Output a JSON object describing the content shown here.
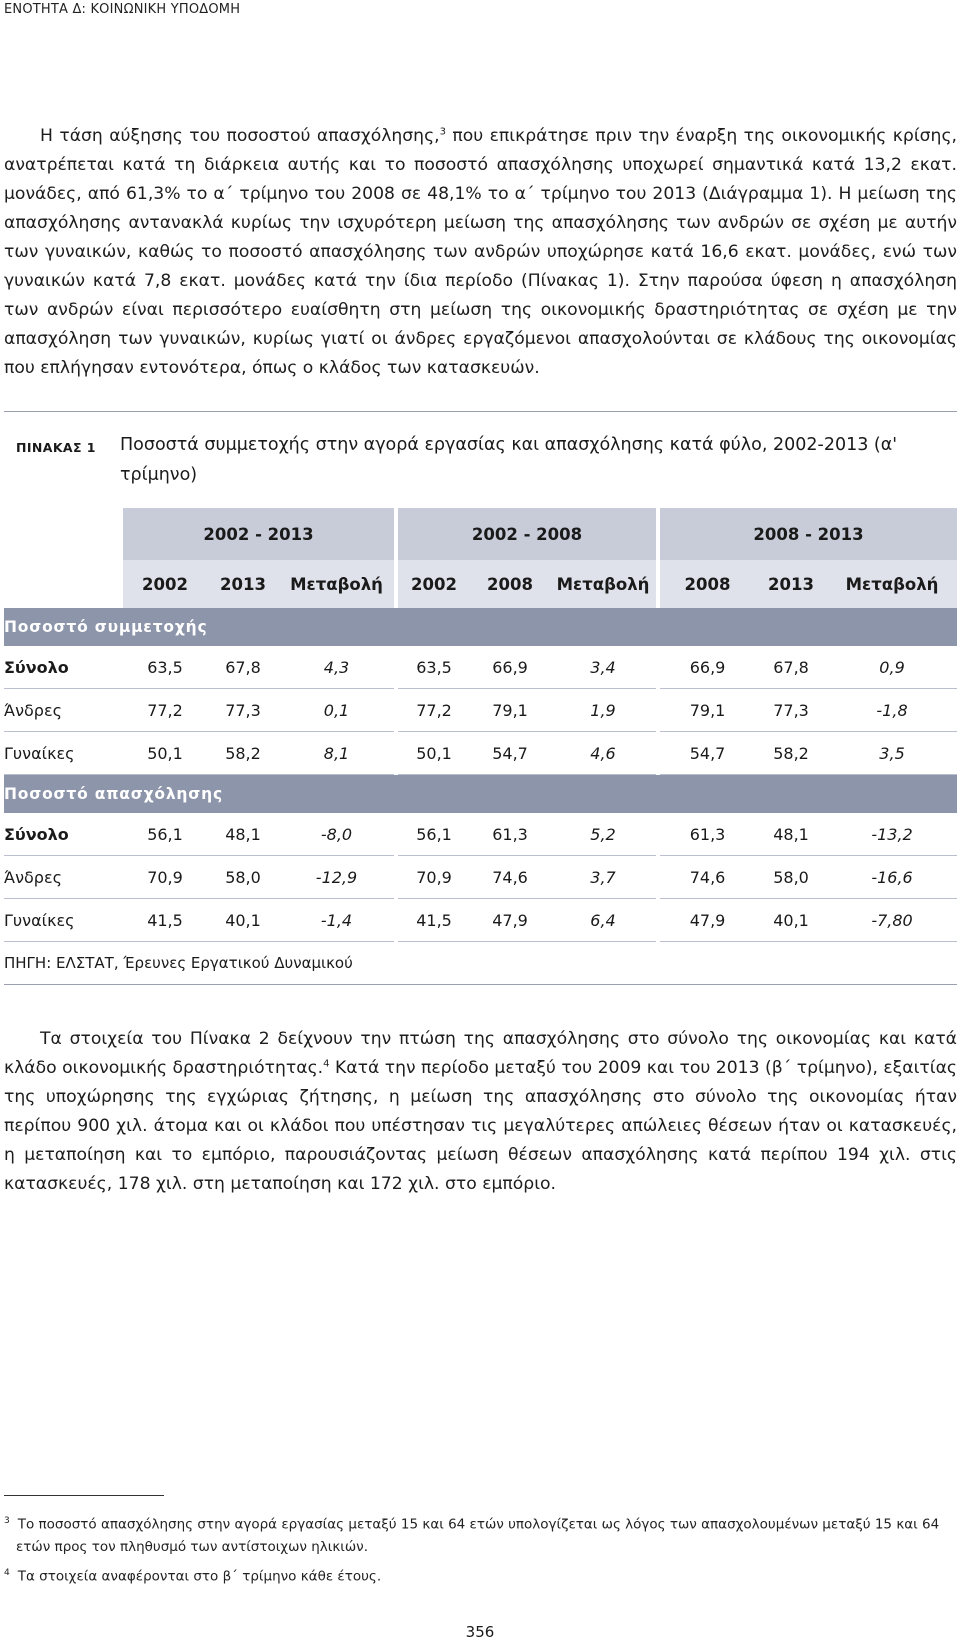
{
  "header": {
    "section": "ΕΝΟΤΗΤΑ Δ: ΚΟΙΝΩΝΙΚΗ ΥΠΟΔΟΜΗ"
  },
  "paragraph1": {
    "part1": "Η τάση αύξησης του ποσοστού απασχόλησης,",
    "ref": "3",
    "part2": " που επικράτησε πριν την έναρξη της οικονομικής κρίσης, ανατρέπεται κατά τη διάρκεια αυτής και το ποσοστό απασχόλησης υποχωρεί σημαντικά κατά 13,2 εκατ. μονάδες, από 61,3% το α΄ τρίμηνο του 2008 σε 48,1% το α΄ τρίμηνο του 2013 (Διάγραμμα 1). Η μείωση της απασχόλησης αντανακλά κυρίως την ισχυρότερη μείωση της απασχόλησης των ανδρών σε σχέση με αυτήν των γυναικών, καθώς το ποσοστό απασχόλησης των ανδρών υποχώρησε κατά 16,6 εκατ. μονάδες, ενώ των γυναικών κατά 7,8 εκατ. μονάδες κατά την ίδια περίοδο (Πίνακας 1). Στην παρούσα ύφεση η απασχόληση των ανδρών είναι περισσότερο ευαίσθητη στη μείωση της οικονομικής δραστηριότητας σε σχέση με την απασχόληση των γυναικών, κυρίως γιατί οι άνδρες εργαζόμενοι απασχολούνται σε κλάδους της οικονομίας που επλήγησαν εντονότερα, όπως ο κλάδος των κατασκευών."
  },
  "table": {
    "label": "ΠΙΝΑΚΑΣ 1",
    "title": "Ποσοστά συμμετοχής στην αγορά εργασίας και απασχόλησης κατά φύλο, 2002-2013 (α' τρίμηνο)",
    "periods": [
      "2002 - 2013",
      "2002 - 2008",
      "2008 - 2013"
    ],
    "subheaders": [
      "2002",
      "2013",
      "Μεταβολή",
      "2002",
      "2008",
      "Μεταβολή",
      "2008",
      "2013",
      "Μεταβολή"
    ],
    "sections": [
      {
        "title": "Ποσοστό συμμετοχής",
        "rows": [
          {
            "label": "Σύνολο",
            "values": [
              "63,5",
              "67,8",
              "4,3",
              "63,5",
              "66,9",
              "3,4",
              "66,9",
              "67,8",
              "0,9"
            ]
          },
          {
            "label": "Άνδρες",
            "values": [
              "77,2",
              "77,3",
              "0,1",
              "77,2",
              "79,1",
              "1,9",
              "79,1",
              "77,3",
              "-1,8"
            ]
          },
          {
            "label": "Γυναίκες",
            "values": [
              "50,1",
              "58,2",
              "8,1",
              "50,1",
              "54,7",
              "4,6",
              "54,7",
              "58,2",
              "3,5"
            ]
          }
        ]
      },
      {
        "title": "Ποσοστό απασχόλησης",
        "rows": [
          {
            "label": "Σύνολο",
            "values": [
              "56,1",
              "48,1",
              "-8,0",
              "56,1",
              "61,3",
              "5,2",
              "61,3",
              "48,1",
              "-13,2"
            ]
          },
          {
            "label": "Άνδρες",
            "values": [
              "70,9",
              "58,0",
              "-12,9",
              "70,9",
              "74,6",
              "3,7",
              "74,6",
              "58,0",
              "-16,6"
            ]
          },
          {
            "label": "Γυναίκες",
            "values": [
              "41,5",
              "40,1",
              "-1,4",
              "41,5",
              "47,9",
              "6,4",
              "47,9",
              "40,1",
              "-7,80"
            ]
          }
        ]
      }
    ],
    "source": "ΠΗΓΗ: ΕΛΣΤΑΤ, Έρευνες Εργατικού Δυναμικού"
  },
  "paragraph2": {
    "part1": "Τα στοιχεία του Πίνακα 2 δείχνουν την πτώση της απασχόλησης στο σύνολο της οικονομίας και κατά κλάδο οικονομικής δραστηριότητας.",
    "ref": "4",
    "part2": " Κατά την περίοδο μεταξύ του 2009 και του 2013 (β΄ τρίμηνο), εξαιτίας της υποχώρησης της εγχώριας ζήτησης, η μείωση της απασχόλησης στο σύνολο της οικονομίας ήταν περίπου 900 χιλ. άτομα και οι κλάδοι που υπέστησαν τις μεγαλύτερες απώλειες θέσεων ήταν οι κατασκευές, η μεταποίηση και το εμπόριο, παρουσιάζοντας μείωση θέσεων απασχόλησης κατά περίπου 194 χιλ. στις κατασκευές, 178 χιλ. στη μεταποίηση και 172 χιλ. στο εμπόριο."
  },
  "footnotes": [
    {
      "num": "3",
      "line1": "Το ποσοστό απασχόλησης στην αγορά εργασίας μεταξύ 15 και 64 ετών υπολογίζεται ως λόγος των απασχολουμένων μεταξύ 15 και 64",
      "line2": "ετών προς τον πληθυσμό των αντίστοιχων ηλικιών."
    },
    {
      "num": "4",
      "line1": "Τα στοιχεία αναφέρονται στο β΄ τρίμηνο κάθε έτους."
    }
  ],
  "page_number": "356"
}
